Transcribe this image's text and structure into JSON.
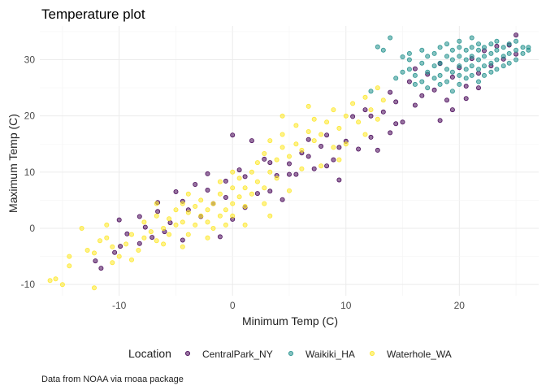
{
  "chart_data": {
    "type": "scatter",
    "title": "Temperature plot",
    "xlabel": "Minimum Temp (C)",
    "ylabel": "Maximum Temp (C)",
    "caption": "Data from NOAA via rnoaa package",
    "xlim": [
      -17,
      27
    ],
    "ylim": [
      -12,
      36
    ],
    "x_ticks": [
      -10,
      0,
      10,
      20
    ],
    "y_ticks": [
      -10,
      0,
      10,
      20,
      30
    ],
    "grid": true,
    "legend": {
      "title": "Location",
      "position": "bottom"
    },
    "series": [
      {
        "name": "CentralPark_NY",
        "color": "#440154",
        "points": [
          [
            -11.6,
            -7.1
          ],
          [
            -12.1,
            -5.8
          ],
          [
            -10.4,
            -4.3
          ],
          [
            -9.9,
            -3.2
          ],
          [
            -10.0,
            1.5
          ],
          [
            -9.3,
            -1.0
          ],
          [
            -8.2,
            -2.7
          ],
          [
            -7.7,
            0.2
          ],
          [
            -7.1,
            -1.6
          ],
          [
            -6.6,
            4.6
          ],
          [
            -6.0,
            -0.6
          ],
          [
            -5.5,
            1.0
          ],
          [
            -5.0,
            6.5
          ],
          [
            -4.4,
            -2.1
          ],
          [
            -3.9,
            3.3
          ],
          [
            -3.3,
            7.8
          ],
          [
            -2.8,
            2.1
          ],
          [
            -2.2,
            9.7
          ],
          [
            -1.7,
            4.4
          ],
          [
            -1.1,
            -1.5
          ],
          [
            -0.6,
            5.5
          ],
          [
            0.0,
            1.6
          ],
          [
            0.0,
            16.6
          ],
          [
            0.6,
            10.4
          ],
          [
            1.1,
            3.7
          ],
          [
            1.7,
            15.6
          ],
          [
            2.2,
            6.2
          ],
          [
            2.8,
            12.3
          ],
          [
            3.3,
            6.6
          ],
          [
            3.9,
            9.4
          ],
          [
            4.4,
            5.1
          ],
          [
            5.0,
            11.5
          ],
          [
            5.6,
            9.6
          ],
          [
            6.1,
            13.4
          ],
          [
            6.7,
            15.8
          ],
          [
            7.2,
            10.6
          ],
          [
            7.8,
            14.6
          ],
          [
            8.3,
            16.6
          ],
          [
            8.9,
            12.2
          ],
          [
            9.4,
            8.6
          ],
          [
            10.0,
            15.5
          ],
          [
            10.6,
            19.9
          ],
          [
            11.1,
            14.1
          ],
          [
            11.7,
            21.1
          ],
          [
            12.2,
            16.2
          ],
          [
            12.8,
            13.9
          ],
          [
            13.3,
            20.7
          ],
          [
            13.9,
            24.2
          ],
          [
            14.4,
            22.5
          ],
          [
            15.0,
            18.9
          ],
          [
            15.6,
            26.1
          ],
          [
            16.1,
            21.9
          ],
          [
            16.7,
            23.6
          ],
          [
            17.2,
            27.4
          ],
          [
            17.8,
            24.6
          ],
          [
            18.3,
            29.3
          ],
          [
            18.9,
            22.8
          ],
          [
            19.4,
            26.9
          ],
          [
            20.0,
            28.6
          ],
          [
            20.6,
            25.3
          ],
          [
            21.1,
            30.2
          ],
          [
            21.7,
            27.6
          ],
          [
            22.2,
            31.6
          ],
          [
            22.8,
            28.9
          ],
          [
            23.3,
            32.4
          ],
          [
            23.9,
            30.1
          ],
          [
            24.4,
            32.6
          ],
          [
            25.0,
            34.4
          ],
          [
            25.0,
            31.0
          ],
          [
            14.4,
            18.6
          ],
          [
            13.9,
            17.0
          ],
          [
            12.2,
            20.0
          ],
          [
            9.4,
            14.4
          ],
          [
            8.3,
            11.1
          ],
          [
            6.7,
            12.8
          ],
          [
            5.0,
            9.6
          ],
          [
            3.3,
            11.7
          ],
          [
            1.1,
            9.2
          ],
          [
            -0.6,
            8.4
          ],
          [
            -2.2,
            6.8
          ],
          [
            -4.4,
            4.8
          ],
          [
            -6.6,
            3.0
          ],
          [
            -8.2,
            2.1
          ],
          [
            16.1,
            28.4
          ],
          [
            18.3,
            19.2
          ],
          [
            19.4,
            21.1
          ],
          [
            20.6,
            23.1
          ],
          [
            21.7,
            25.0
          ]
        ]
      },
      {
        "name": "Waikiki_HA",
        "color": "#21908C",
        "points": [
          [
            12.8,
            32.3
          ],
          [
            13.3,
            31.7
          ],
          [
            15.0,
            30.5
          ],
          [
            15.6,
            30.0
          ],
          [
            15.6,
            28.3
          ],
          [
            16.1,
            27.2
          ],
          [
            16.7,
            26.1
          ],
          [
            16.7,
            29.4
          ],
          [
            16.7,
            31.7
          ],
          [
            17.2,
            27.8
          ],
          [
            17.2,
            30.6
          ],
          [
            17.8,
            26.7
          ],
          [
            17.8,
            28.9
          ],
          [
            17.8,
            31.1
          ],
          [
            18.3,
            27.2
          ],
          [
            18.3,
            29.4
          ],
          [
            18.3,
            32.2
          ],
          [
            18.9,
            26.1
          ],
          [
            18.9,
            28.3
          ],
          [
            18.9,
            30.6
          ],
          [
            18.9,
            32.8
          ],
          [
            19.4,
            27.8
          ],
          [
            19.4,
            30.0
          ],
          [
            19.4,
            31.7
          ],
          [
            20.0,
            25.6
          ],
          [
            20.0,
            27.2
          ],
          [
            20.0,
            28.9
          ],
          [
            20.0,
            30.6
          ],
          [
            20.0,
            32.2
          ],
          [
            20.6,
            26.7
          ],
          [
            20.6,
            28.3
          ],
          [
            20.6,
            30.0
          ],
          [
            20.6,
            31.7
          ],
          [
            21.1,
            27.2
          ],
          [
            21.1,
            28.9
          ],
          [
            21.1,
            30.6
          ],
          [
            21.1,
            32.2
          ],
          [
            21.7,
            26.1
          ],
          [
            21.7,
            28.3
          ],
          [
            21.7,
            30.0
          ],
          [
            21.7,
            31.7
          ],
          [
            21.7,
            32.8
          ],
          [
            22.2,
            27.2
          ],
          [
            22.2,
            28.9
          ],
          [
            22.2,
            30.6
          ],
          [
            22.2,
            32.2
          ],
          [
            22.8,
            27.8
          ],
          [
            22.8,
            29.4
          ],
          [
            22.8,
            31.1
          ],
          [
            22.8,
            32.8
          ],
          [
            23.3,
            28.3
          ],
          [
            23.3,
            30.0
          ],
          [
            23.3,
            31.7
          ],
          [
            23.9,
            28.9
          ],
          [
            23.9,
            30.6
          ],
          [
            23.9,
            32.2
          ],
          [
            24.4,
            29.4
          ],
          [
            24.4,
            31.1
          ],
          [
            24.4,
            32.8
          ],
          [
            25.0,
            30.0
          ],
          [
            25.0,
            31.7
          ],
          [
            25.0,
            33.3
          ],
          [
            25.6,
            31.1
          ],
          [
            25.6,
            32.2
          ],
          [
            26.1,
            31.7
          ],
          [
            26.1,
            32.2
          ],
          [
            14.4,
            26.7
          ],
          [
            15.0,
            27.8
          ],
          [
            16.1,
            25.6
          ],
          [
            17.2,
            25.0
          ],
          [
            19.4,
            24.4
          ],
          [
            18.3,
            25.6
          ],
          [
            12.2,
            24.4
          ],
          [
            13.9,
            33.9
          ],
          [
            15.6,
            31.1
          ],
          [
            20.0,
            33.3
          ],
          [
            21.1,
            33.9
          ],
          [
            23.3,
            33.3
          ]
        ]
      },
      {
        "name": "Waterhole_WA",
        "color": "#FDE725",
        "points": [
          [
            -16.1,
            -9.3
          ],
          [
            -15.6,
            -9.0
          ],
          [
            -15.0,
            -10.0
          ],
          [
            -14.4,
            -6.7
          ],
          [
            -14.4,
            -5.0
          ],
          [
            -13.3,
            0.0
          ],
          [
            -12.8,
            -3.9
          ],
          [
            -12.2,
            -10.6
          ],
          [
            -12.2,
            -4.4
          ],
          [
            -11.7,
            -2.2
          ],
          [
            -11.1,
            0.6
          ],
          [
            -11.1,
            -1.7
          ],
          [
            -10.6,
            -3.3
          ],
          [
            -10.0,
            -5.0
          ],
          [
            -9.4,
            -2.8
          ],
          [
            -8.9,
            -1.1
          ],
          [
            -8.3,
            -3.9
          ],
          [
            -7.8,
            -1.7
          ],
          [
            -7.8,
            1.1
          ],
          [
            -7.2,
            -0.6
          ],
          [
            -6.7,
            -2.2
          ],
          [
            -6.7,
            2.2
          ],
          [
            -6.1,
            0.0
          ],
          [
            -5.6,
            1.7
          ],
          [
            -5.6,
            -1.1
          ],
          [
            -5.0,
            3.3
          ],
          [
            -5.0,
            0.6
          ],
          [
            -4.4,
            1.1
          ],
          [
            -4.4,
            4.4
          ],
          [
            -3.9,
            2.8
          ],
          [
            -3.9,
            -1.1
          ],
          [
            -3.3,
            0.6
          ],
          [
            -3.3,
            3.9
          ],
          [
            -2.8,
            2.2
          ],
          [
            -2.8,
            5.0
          ],
          [
            -2.2,
            1.1
          ],
          [
            -2.2,
            3.3
          ],
          [
            -1.7,
            0.0
          ],
          [
            -1.7,
            4.4
          ],
          [
            -1.1,
            2.2
          ],
          [
            -1.1,
            6.1
          ],
          [
            -0.6,
            3.3
          ],
          [
            -0.6,
            0.6
          ],
          [
            0.0,
            4.4
          ],
          [
            0.0,
            7.2
          ],
          [
            0.0,
            2.2
          ],
          [
            0.6,
            5.6
          ],
          [
            0.6,
            8.9
          ],
          [
            1.1,
            3.9
          ],
          [
            1.1,
            7.2
          ],
          [
            1.7,
            6.1
          ],
          [
            1.7,
            10.0
          ],
          [
            2.2,
            8.3
          ],
          [
            2.2,
            11.7
          ],
          [
            2.8,
            7.2
          ],
          [
            2.8,
            13.3
          ],
          [
            3.3,
            10.0
          ],
          [
            3.3,
            15.6
          ],
          [
            3.9,
            12.2
          ],
          [
            3.9,
            8.9
          ],
          [
            4.4,
            14.4
          ],
          [
            4.4,
            16.7
          ],
          [
            5.0,
            12.8
          ],
          [
            5.6,
            15.0
          ],
          [
            5.6,
            18.3
          ],
          [
            6.1,
            13.9
          ],
          [
            6.7,
            17.2
          ],
          [
            7.2,
            15.6
          ],
          [
            7.2,
            19.4
          ],
          [
            7.8,
            16.7
          ],
          [
            8.3,
            18.9
          ],
          [
            8.9,
            14.4
          ],
          [
            8.9,
            21.1
          ],
          [
            9.4,
            17.8
          ],
          [
            10.0,
            20.0
          ],
          [
            10.6,
            22.2
          ],
          [
            11.1,
            18.9
          ],
          [
            11.7,
            23.3
          ],
          [
            12.2,
            21.1
          ],
          [
            12.8,
            25.0
          ],
          [
            13.3,
            22.8
          ],
          [
            11.7,
            16.7
          ],
          [
            9.4,
            12.2
          ],
          [
            6.1,
            10.6
          ],
          [
            2.8,
            4.4
          ],
          [
            1.1,
            0.6
          ],
          [
            -2.2,
            -1.7
          ],
          [
            -4.4,
            -3.3
          ],
          [
            -6.1,
            -2.8
          ],
          [
            -8.9,
            -5.6
          ],
          [
            -10.6,
            -6.1
          ],
          [
            0.0,
            10.0
          ],
          [
            -1.1,
            8.3
          ],
          [
            3.3,
            2.2
          ],
          [
            5.0,
            6.7
          ],
          [
            7.8,
            11.1
          ],
          [
            10.0,
            15.0
          ],
          [
            12.8,
            19.4
          ],
          [
            -3.9,
            6.1
          ],
          [
            -6.7,
            4.4
          ],
          [
            4.4,
            20.0
          ],
          [
            6.7,
            21.7
          ]
        ]
      }
    ]
  }
}
